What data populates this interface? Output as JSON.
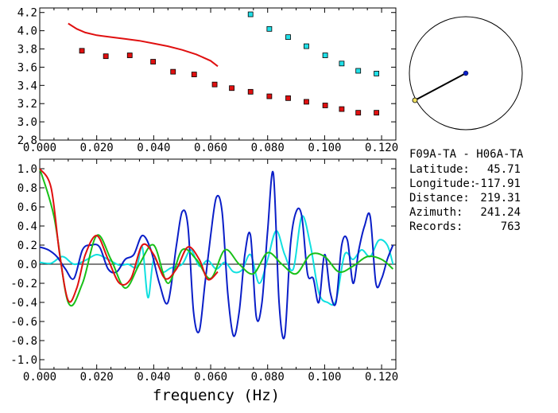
{
  "station_info": {
    "pair": "F09A-TA - H06A-TA",
    "latitude_label": "Latitude:",
    "latitude": "45.71",
    "longitude_label": "Longitude:",
    "longitude": "-117.91",
    "distance_label": "Distance:",
    "distance": "219.31",
    "azimuth_label": "Azimuth:",
    "azimuth": "241.24",
    "records_label": "Records:",
    "records": "763"
  },
  "colors": {
    "red": "#e01010",
    "blue": "#0a1ec8",
    "green": "#18c018",
    "cyan": "#10e0e0",
    "square_red": "#e01010",
    "square_cyan": "#20e0e8"
  },
  "chart_data": [
    {
      "type": "scatter",
      "xlim": [
        0.0,
        0.125
      ],
      "ylim": [
        2.8,
        4.25
      ],
      "xticks": [
        "0.000",
        "0.020",
        "0.040",
        "0.060",
        "0.080",
        "0.100",
        "0.120"
      ],
      "yticks": [
        "2.8",
        "3.0",
        "3.2",
        "3.4",
        "3.6",
        "3.8",
        "4.0",
        "4.2"
      ],
      "red_line": {
        "x": [
          0.01,
          0.013,
          0.016,
          0.02,
          0.025,
          0.03,
          0.035,
          0.04,
          0.045,
          0.05,
          0.055,
          0.06,
          0.0625
        ],
        "y": [
          4.08,
          4.02,
          3.98,
          3.95,
          3.93,
          3.91,
          3.89,
          3.86,
          3.83,
          3.79,
          3.74,
          3.67,
          3.61
        ]
      },
      "red_points": {
        "x": [
          0.0148,
          0.0232,
          0.0316,
          0.0398,
          0.0468,
          0.0542,
          0.0614,
          0.0674,
          0.074,
          0.0806,
          0.0872,
          0.0936,
          0.1002,
          0.106,
          0.1118,
          0.1182
        ],
        "y": [
          3.78,
          3.72,
          3.73,
          3.66,
          3.55,
          3.52,
          3.41,
          3.37,
          3.33,
          3.28,
          3.26,
          3.22,
          3.18,
          3.14,
          3.1,
          3.1
        ]
      },
      "cyan_points": {
        "x": [
          0.074,
          0.0806,
          0.0872,
          0.0936,
          0.1002,
          0.106,
          0.1118,
          0.1182
        ],
        "y": [
          4.18,
          4.02,
          3.93,
          3.83,
          3.73,
          3.64,
          3.56,
          3.53
        ]
      }
    },
    {
      "type": "line",
      "xlabel": "frequency (Hz)",
      "xlim": [
        0.0,
        0.125
      ],
      "ylim": [
        -1.1,
        1.1
      ],
      "xticks": [
        "0.000",
        "0.020",
        "0.040",
        "0.060",
        "0.080",
        "0.100",
        "0.120"
      ],
      "yticks": [
        "1.0",
        "0.8",
        "0.6",
        "0.4",
        "0.2",
        "0.0",
        "-0.2",
        "-0.4",
        "-0.6",
        "-0.8",
        "-1.0"
      ],
      "series": [
        {
          "color": "cyan",
          "x": [
            0.0,
            0.004,
            0.008,
            0.012,
            0.016,
            0.02,
            0.024,
            0.028,
            0.031,
            0.034,
            0.036,
            0.038,
            0.04,
            0.043,
            0.046,
            0.05,
            0.053,
            0.056,
            0.059,
            0.062,
            0.065,
            0.068,
            0.071,
            0.074,
            0.077,
            0.08,
            0.083,
            0.086,
            0.089,
            0.092,
            0.095,
            0.098,
            0.101,
            0.104,
            0.107,
            0.11,
            0.113,
            0.116,
            0.119,
            0.122,
            0.124
          ],
          "y": [
            0.02,
            0.01,
            0.08,
            0.0,
            0.04,
            0.1,
            0.05,
            -0.01,
            0.0,
            -0.03,
            0.18,
            -0.35,
            0.05,
            -0.08,
            -0.04,
            0.0,
            0.15,
            -0.02,
            0.04,
            -0.05,
            0.02,
            -0.08,
            -0.06,
            0.1,
            -0.2,
            0.05,
            0.35,
            0.1,
            -0.05,
            0.5,
            0.2,
            -0.3,
            -0.4,
            -0.38,
            0.1,
            0.05,
            0.15,
            0.08,
            0.25,
            0.2,
            0.0
          ]
        },
        {
          "color": "blue",
          "x": [
            0.0,
            0.003,
            0.006,
            0.009,
            0.012,
            0.015,
            0.018,
            0.021,
            0.024,
            0.027,
            0.03,
            0.033,
            0.036,
            0.039,
            0.042,
            0.045,
            0.048,
            0.05,
            0.052,
            0.054,
            0.056,
            0.058,
            0.06,
            0.062,
            0.064,
            0.066,
            0.068,
            0.07,
            0.072,
            0.074,
            0.076,
            0.078,
            0.08,
            0.082,
            0.084,
            0.086,
            0.088,
            0.09,
            0.092,
            0.094,
            0.096,
            0.098,
            0.1,
            0.102,
            0.104,
            0.106,
            0.108,
            0.11,
            0.112,
            0.114,
            0.116,
            0.118,
            0.12,
            0.122,
            0.124
          ],
          "y": [
            0.18,
            0.15,
            0.08,
            -0.05,
            -0.15,
            0.15,
            0.2,
            0.18,
            -0.05,
            -0.08,
            0.05,
            0.1,
            0.3,
            0.15,
            -0.2,
            -0.4,
            0.2,
            0.55,
            0.4,
            -0.5,
            -0.7,
            -0.2,
            0.3,
            0.7,
            0.55,
            -0.3,
            -0.75,
            -0.5,
            0.1,
            0.3,
            -0.55,
            -0.4,
            0.35,
            0.95,
            -0.4,
            -0.75,
            0.2,
            0.55,
            0.5,
            -0.1,
            -0.15,
            -0.4,
            0.1,
            -0.3,
            -0.4,
            0.2,
            0.25,
            -0.2,
            0.15,
            0.4,
            0.5,
            -0.2,
            -0.15,
            0.05,
            0.2
          ]
        },
        {
          "color": "green",
          "x": [
            0.0,
            0.005,
            0.01,
            0.015,
            0.02,
            0.025,
            0.03,
            0.035,
            0.04,
            0.045,
            0.05,
            0.055,
            0.06,
            0.065,
            0.07,
            0.075,
            0.08,
            0.085,
            0.09,
            0.095,
            0.1,
            0.105,
            0.11,
            0.115,
            0.12,
            0.124
          ],
          "y": [
            1.0,
            0.5,
            -0.4,
            -0.2,
            0.3,
            0.05,
            -0.25,
            0.0,
            0.2,
            -0.2,
            0.15,
            0.05,
            -0.15,
            0.15,
            0.0,
            -0.1,
            0.12,
            0.0,
            -0.1,
            0.1,
            0.08,
            -0.08,
            -0.02,
            0.08,
            0.05,
            -0.05
          ]
        },
        {
          "color": "red",
          "x": [
            0.0,
            0.004,
            0.007,
            0.01,
            0.013,
            0.016,
            0.02,
            0.024,
            0.028,
            0.032,
            0.036,
            0.04,
            0.044,
            0.048,
            0.052,
            0.056,
            0.059,
            0.0625
          ],
          "y": [
            1.0,
            0.8,
            0.1,
            -0.38,
            -0.25,
            0.1,
            0.3,
            0.05,
            -0.2,
            -0.15,
            0.2,
            0.1,
            -0.15,
            -0.05,
            0.18,
            0.05,
            -0.16,
            -0.08
          ]
        }
      ]
    }
  ]
}
